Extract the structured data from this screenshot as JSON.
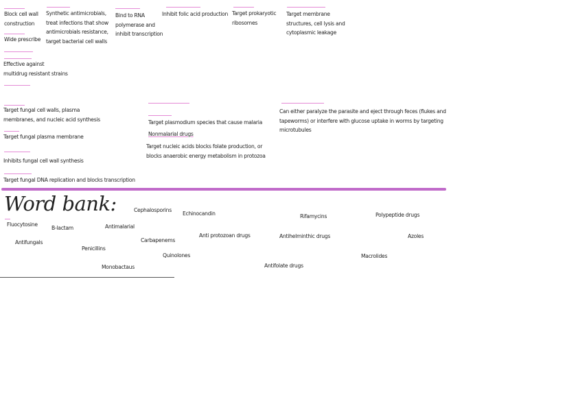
{
  "definitions": [
    {
      "id": "d1",
      "text": "Block cell wall\nconstruction"
    },
    {
      "id": "d2",
      "text": "Wide prescribe"
    },
    {
      "id": "d3",
      "text": "Effective against\nmultidrug resistant strains"
    },
    {
      "id": "d4",
      "text": "Synthetic antimicrobials,\ntreat infections that show\nantimicrobials resistance,\ntarget bacterial cell walls"
    },
    {
      "id": "d5",
      "text": "Bind to RNA\npolymerase and\ninhibit transcription"
    },
    {
      "id": "d6",
      "text": "Inhibit folic acid production"
    },
    {
      "id": "d7",
      "text": "Target prokaryotic\nribosomes"
    },
    {
      "id": "d8",
      "text": "Target membrane\nstructures, cell lysis and\ncytoplasmic leakage"
    },
    {
      "id": "d9",
      "text": "Target fungal cell walls, plasma\nmembranes, and nucleic acid synthesis"
    },
    {
      "id": "d10",
      "text": "Target fungal plasma membrane"
    },
    {
      "id": "d11",
      "text": "Inhibits fungal cell wall synthesis"
    },
    {
      "id": "d12",
      "text": "Target fungal DNA replication and blocks transcription"
    },
    {
      "id": "d13",
      "text": "Target plasmodium species that cause malaria"
    },
    {
      "id": "d14",
      "text": "Nonmalarial drugs"
    },
    {
      "id": "d15",
      "text": "Target nucleic acids blocks folate production, or\nblocks anaerobic energy metabolism in protozoa"
    },
    {
      "id": "d16",
      "text": "Can either paralyze the parasite and eject through feces (flukes and\ntapeworms) or interfere with glucose uptake in worms by targeting\nmicrotubules"
    }
  ],
  "word_bank": {
    "title": "Word bank:",
    "words": [
      "Cephalosporins",
      "Echinocandin",
      "Rifamycins",
      "Polypeptide drugs",
      "Fluocytosine",
      "B-lactam",
      "Antimalarial",
      "Antifungals",
      "Carbapenems",
      "Anti protozoan drugs",
      "Antihelminthic drugs",
      "Azoles",
      "Penicillins",
      "Quinolones",
      "Macrolides",
      "Monobactaus",
      "Antifolate drugs"
    ]
  },
  "colors": {
    "accent": "#e48ad6",
    "divider": "#c06ac9",
    "text": "#222222"
  }
}
